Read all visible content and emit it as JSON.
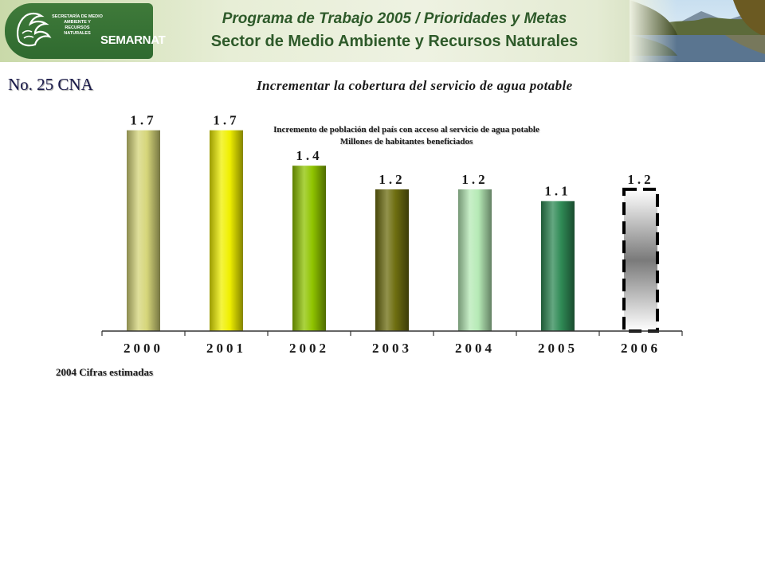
{
  "header": {
    "logo_text_small": "SECRETARÍA DE MEDIO AMBIENTE Y RECURSOS NATURALES",
    "logo_text_big": "SEMARNAT",
    "title_line1": "Programa de Trabajo 2005 / Prioridades y Metas",
    "title_line2": "Sector de Medio Ambiente y Recursos Naturales"
  },
  "slide": {
    "id": "No. 25 CNA",
    "title": "Incrementar la cobertura del servicio de agua potable",
    "note": "2004 Cifras estimadas"
  },
  "chart_data": {
    "type": "bar",
    "title": "Incremento de población del país con acceso al servicio de agua potable",
    "subtitle": "Millones de habitantes beneficiados",
    "categories": [
      "2000",
      "2001",
      "2002",
      "2003",
      "2004",
      "2005",
      "2006"
    ],
    "values": [
      1.7,
      1.7,
      1.4,
      1.2,
      1.2,
      1.1,
      1.2
    ],
    "value_labels": [
      "1.7",
      "1.7",
      "1.4",
      "1.2",
      "1.2",
      "1.1",
      "1.2"
    ],
    "bar_colors": [
      "#d6d67a",
      "#f0f000",
      "#8fc400",
      "#6e6e10",
      "#b6eab6",
      "#2f8a55",
      "#ffffff"
    ],
    "highlight_category": "2006",
    "ylim": [
      0,
      1.9
    ],
    "grid": false,
    "legend": "none"
  }
}
